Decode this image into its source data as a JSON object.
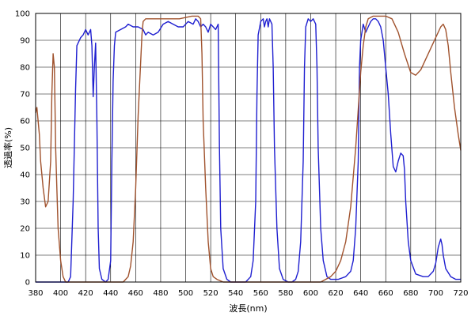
{
  "chart_data": {
    "type": "line",
    "title": "",
    "xlabel": "波長(nm)",
    "ylabel": "透過率(%)",
    "xlim": [
      380,
      720
    ],
    "ylim": [
      0,
      100
    ],
    "grid": true,
    "x_ticks": [
      380,
      400,
      420,
      440,
      460,
      480,
      500,
      520,
      540,
      560,
      580,
      600,
      620,
      640,
      660,
      680,
      700,
      720
    ],
    "y_ticks": [
      0,
      10,
      20,
      30,
      40,
      50,
      60,
      70,
      80,
      90,
      100
    ],
    "series": [
      {
        "color": "#1f1fd0",
        "points": [
          [
            380,
            0
          ],
          [
            400,
            0
          ],
          [
            406,
            0
          ],
          [
            408,
            2
          ],
          [
            410,
            30
          ],
          [
            412,
            72
          ],
          [
            413,
            88
          ],
          [
            416,
            91
          ],
          [
            418,
            92
          ],
          [
            420,
            94
          ],
          [
            422,
            92
          ],
          [
            424,
            94
          ],
          [
            425,
            88
          ],
          [
            426,
            69
          ],
          [
            427,
            80
          ],
          [
            428,
            89
          ],
          [
            429,
            60
          ],
          [
            430,
            20
          ],
          [
            431,
            5
          ],
          [
            433,
            1
          ],
          [
            436,
            0
          ],
          [
            438,
            1
          ],
          [
            440,
            8
          ],
          [
            441,
            45
          ],
          [
            442,
            75
          ],
          [
            443,
            88
          ],
          [
            444,
            93
          ],
          [
            448,
            94
          ],
          [
            452,
            95
          ],
          [
            454,
            96
          ],
          [
            458,
            95
          ],
          [
            462,
            95
          ],
          [
            466,
            94
          ],
          [
            468,
            92
          ],
          [
            470,
            93
          ],
          [
            474,
            92
          ],
          [
            478,
            93
          ],
          [
            482,
            96
          ],
          [
            486,
            97
          ],
          [
            490,
            96
          ],
          [
            494,
            95
          ],
          [
            498,
            95
          ],
          [
            502,
            97
          ],
          [
            506,
            96
          ],
          [
            508,
            98
          ],
          [
            510,
            97
          ],
          [
            512,
            95
          ],
          [
            514,
            96
          ],
          [
            516,
            95
          ],
          [
            518,
            93
          ],
          [
            520,
            96
          ],
          [
            522,
            95
          ],
          [
            524,
            94
          ],
          [
            525,
            95
          ],
          [
            526,
            96
          ],
          [
            527,
            50
          ],
          [
            528,
            20
          ],
          [
            530,
            5
          ],
          [
            533,
            1
          ],
          [
            536,
            0
          ],
          [
            548,
            0
          ],
          [
            552,
            2
          ],
          [
            554,
            8
          ],
          [
            556,
            30
          ],
          [
            557,
            70
          ],
          [
            558,
            92
          ],
          [
            560,
            97
          ],
          [
            562,
            98
          ],
          [
            563,
            95
          ],
          [
            564,
            97
          ],
          [
            565,
            98
          ],
          [
            566,
            95
          ],
          [
            567,
            98
          ],
          [
            569,
            96
          ],
          [
            570,
            80
          ],
          [
            571,
            50
          ],
          [
            573,
            20
          ],
          [
            575,
            5
          ],
          [
            578,
            1
          ],
          [
            582,
            0
          ],
          [
            585,
            0
          ],
          [
            588,
            1
          ],
          [
            590,
            4
          ],
          [
            592,
            15
          ],
          [
            594,
            45
          ],
          [
            595,
            80
          ],
          [
            596,
            95
          ],
          [
            598,
            98
          ],
          [
            600,
            97
          ],
          [
            602,
            98
          ],
          [
            604,
            96
          ],
          [
            605,
            80
          ],
          [
            606,
            50
          ],
          [
            608,
            20
          ],
          [
            610,
            8
          ],
          [
            613,
            2
          ],
          [
            616,
            1
          ],
          [
            622,
            1
          ],
          [
            628,
            2
          ],
          [
            632,
            4
          ],
          [
            634,
            8
          ],
          [
            636,
            20
          ],
          [
            638,
            45
          ],
          [
            639,
            80
          ],
          [
            640,
            90
          ],
          [
            642,
            96
          ],
          [
            644,
            93
          ],
          [
            646,
            95
          ],
          [
            648,
            97
          ],
          [
            650,
            98
          ],
          [
            652,
            98
          ],
          [
            654,
            97
          ],
          [
            656,
            95
          ],
          [
            658,
            90
          ],
          [
            660,
            80
          ],
          [
            662,
            70
          ],
          [
            664,
            55
          ],
          [
            666,
            43
          ],
          [
            668,
            41
          ],
          [
            670,
            45
          ],
          [
            672,
            48
          ],
          [
            674,
            47
          ],
          [
            675,
            42
          ],
          [
            676,
            30
          ],
          [
            678,
            15
          ],
          [
            680,
            8
          ],
          [
            684,
            3
          ],
          [
            690,
            2
          ],
          [
            694,
            2
          ],
          [
            698,
            4
          ],
          [
            700,
            7
          ],
          [
            702,
            13
          ],
          [
            704,
            16
          ],
          [
            705,
            14
          ],
          [
            706,
            10
          ],
          [
            708,
            5
          ],
          [
            712,
            2
          ],
          [
            716,
            1
          ],
          [
            720,
            1
          ]
        ]
      },
      {
        "color": "#a0522d",
        "points": [
          [
            380,
            63
          ],
          [
            381,
            65
          ],
          [
            383,
            55
          ],
          [
            384,
            45
          ],
          [
            386,
            35
          ],
          [
            388,
            28
          ],
          [
            390,
            30
          ],
          [
            392,
            45
          ],
          [
            393,
            70
          ],
          [
            394,
            85
          ],
          [
            395,
            80
          ],
          [
            396,
            50
          ],
          [
            397,
            35
          ],
          [
            398,
            20
          ],
          [
            400,
            8
          ],
          [
            402,
            2
          ],
          [
            404,
            0
          ],
          [
            420,
            0
          ],
          [
            440,
            0
          ],
          [
            446,
            0
          ],
          [
            450,
            0
          ],
          [
            452,
            1
          ],
          [
            454,
            2
          ],
          [
            456,
            6
          ],
          [
            458,
            15
          ],
          [
            460,
            35
          ],
          [
            462,
            62
          ],
          [
            464,
            82
          ],
          [
            465,
            92
          ],
          [
            466,
            97
          ],
          [
            468,
            98
          ],
          [
            475,
            98
          ],
          [
            485,
            98
          ],
          [
            495,
            98
          ],
          [
            505,
            99
          ],
          [
            510,
            99
          ],
          [
            512,
            98
          ],
          [
            513,
            85
          ],
          [
            514,
            60
          ],
          [
            516,
            35
          ],
          [
            518,
            15
          ],
          [
            520,
            5
          ],
          [
            522,
            2
          ],
          [
            525,
            1
          ],
          [
            530,
            0
          ],
          [
            600,
            0
          ],
          [
            608,
            0
          ],
          [
            612,
            1
          ],
          [
            616,
            2
          ],
          [
            620,
            4
          ],
          [
            624,
            8
          ],
          [
            628,
            15
          ],
          [
            632,
            28
          ],
          [
            636,
            50
          ],
          [
            640,
            78
          ],
          [
            642,
            88
          ],
          [
            644,
            95
          ],
          [
            646,
            98
          ],
          [
            650,
            99
          ],
          [
            660,
            99
          ],
          [
            665,
            98
          ],
          [
            670,
            93
          ],
          [
            675,
            85
          ],
          [
            680,
            78
          ],
          [
            684,
            77
          ],
          [
            688,
            79
          ],
          [
            692,
            83
          ],
          [
            696,
            87
          ],
          [
            700,
            91
          ],
          [
            704,
            95
          ],
          [
            706,
            96
          ],
          [
            708,
            94
          ],
          [
            710,
            88
          ],
          [
            712,
            78
          ],
          [
            715,
            65
          ],
          [
            718,
            55
          ],
          [
            720,
            49
          ]
        ]
      }
    ]
  }
}
